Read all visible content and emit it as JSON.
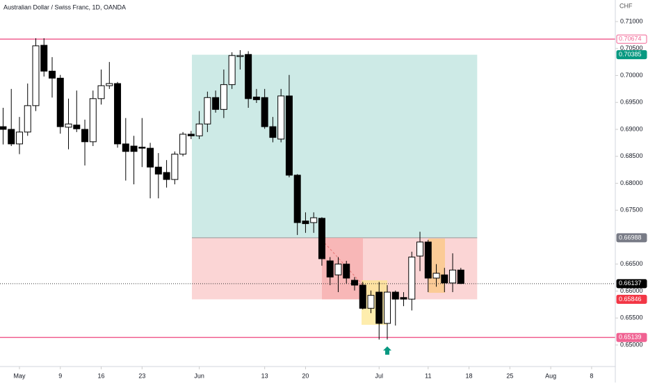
{
  "chart_data": {
    "type": "candlestick",
    "title": "Australian Dollar / Swiss Franc, 1D, OANDA",
    "y_axis_label": "CHF",
    "x": [
      0,
      1,
      2,
      3,
      4,
      5,
      6,
      7,
      8,
      9,
      10,
      11,
      12,
      13,
      14,
      15,
      16,
      17,
      18,
      19,
      20,
      21,
      22,
      23,
      24,
      25,
      26,
      27,
      28,
      29,
      30,
      31,
      32,
      33,
      34,
      35,
      36,
      37,
      38,
      39,
      40,
      41,
      42,
      43,
      44,
      45,
      46,
      47,
      48,
      49,
      50,
      51,
      52,
      53,
      54,
      55,
      56
    ],
    "open": [
      0.6905,
      0.69,
      0.6873,
      0.6895,
      0.6944,
      0.7056,
      0.7008,
      0.6995,
      0.6904,
      0.6908,
      0.69,
      0.6877,
      0.6957,
      0.6981,
      0.6985,
      0.6873,
      0.6869,
      0.6867,
      0.6865,
      0.683,
      0.682,
      0.6807,
      0.6854,
      0.6891,
      0.6888,
      0.691,
      0.6959,
      0.6937,
      0.6983,
      0.7035,
      0.7039,
      0.696,
      0.6959,
      0.6905,
      0.6882,
      0.6962,
      0.6815,
      0.673,
      0.6727,
      0.6735,
      0.6656,
      0.663,
      0.665,
      0.662,
      0.6611,
      0.6568,
      0.6598,
      0.654,
      0.6598,
      0.6588,
      0.6585,
      0.6665,
      0.6691,
      0.6624,
      0.663,
      0.6615,
      0.6639
    ],
    "high": [
      0.694,
      0.6975,
      0.6923,
      0.6985,
      0.7069,
      0.7069,
      0.7034,
      0.7001,
      0.6957,
      0.6972,
      0.6918,
      0.6972,
      0.7011,
      0.7025,
      0.6988,
      0.6921,
      0.6888,
      0.6921,
      0.6875,
      0.6856,
      0.6843,
      0.6859,
      0.6895,
      0.6897,
      0.6934,
      0.697,
      0.6972,
      0.7011,
      0.7043,
      0.7047,
      0.7045,
      0.6975,
      0.6975,
      0.6923,
      0.6975,
      0.7001,
      0.6817,
      0.6746,
      0.6746,
      0.6737,
      0.6663,
      0.6663,
      0.6656,
      0.6626,
      0.6617,
      0.6601,
      0.6617,
      0.6611,
      0.6601,
      0.6598,
      0.6673,
      0.671,
      0.6695,
      0.665,
      0.6643,
      0.667,
      0.6643
    ],
    "low": [
      0.6872,
      0.6869,
      0.6854,
      0.6888,
      0.6934,
      0.6998,
      0.6959,
      0.6892,
      0.6863,
      0.6895,
      0.6833,
      0.6869,
      0.6946,
      0.6975,
      0.6866,
      0.6805,
      0.6798,
      0.683,
      0.6772,
      0.6772,
      0.6792,
      0.6798,
      0.685,
      0.6882,
      0.6882,
      0.6895,
      0.6931,
      0.6921,
      0.6975,
      0.7011,
      0.694,
      0.6949,
      0.6901,
      0.6876,
      0.6876,
      0.6811,
      0.6704,
      0.6708,
      0.6708,
      0.6647,
      0.6611,
      0.6598,
      0.6614,
      0.6601,
      0.6566,
      0.6559,
      0.651,
      0.651,
      0.6536,
      0.6572,
      0.6564,
      0.6637,
      0.6598,
      0.6608,
      0.6598,
      0.6598,
      0.6613
    ],
    "close": [
      0.69,
      0.6873,
      0.6895,
      0.6944,
      0.7055,
      0.7008,
      0.6995,
      0.6905,
      0.691,
      0.6901,
      0.6877,
      0.6957,
      0.6981,
      0.6985,
      0.6873,
      0.6859,
      0.6859,
      0.6865,
      0.683,
      0.6817,
      0.6807,
      0.6854,
      0.6891,
      0.6888,
      0.691,
      0.6959,
      0.6937,
      0.6983,
      0.7037,
      0.7037,
      0.6957,
      0.6955,
      0.6905,
      0.6885,
      0.6962,
      0.6815,
      0.6727,
      0.6725,
      0.6736,
      0.666,
      0.6626,
      0.665,
      0.6624,
      0.6611,
      0.6568,
      0.6592,
      0.654,
      0.6598,
      0.6585,
      0.6585,
      0.6663,
      0.6691,
      0.6624,
      0.6633,
      0.6615,
      0.6639,
      0.6614
    ],
    "up_color": "#ffffff",
    "down_color": "#000000",
    "xlim": [
      -0.38,
      74.9
    ],
    "ylim": [
      0.6469,
      0.714
    ],
    "xticks": [
      {
        "value": 2,
        "label": "May"
      },
      {
        "value": 7,
        "label": "9"
      },
      {
        "value": 12,
        "label": "16"
      },
      {
        "value": 17,
        "label": "23"
      },
      {
        "value": 24,
        "label": "Jun"
      },
      {
        "value": 32,
        "label": "13"
      },
      {
        "value": 37,
        "label": "20"
      },
      {
        "value": 46,
        "label": "Jul"
      },
      {
        "value": 52,
        "label": "11"
      },
      {
        "value": 57,
        "label": "18"
      },
      {
        "value": 62,
        "label": "25"
      },
      {
        "value": 67,
        "label": "Aug"
      },
      {
        "value": 72,
        "label": "8"
      }
    ],
    "yticks": [
      {
        "value": 0.71,
        "label": "0.71000"
      },
      {
        "value": 0.705,
        "label": "0.70500"
      },
      {
        "value": 0.7,
        "label": "0.70000"
      },
      {
        "value": 0.695,
        "label": "0.69500"
      },
      {
        "value": 0.69,
        "label": "0.69000"
      },
      {
        "value": 0.685,
        "label": "0.68500"
      },
      {
        "value": 0.68,
        "label": "0.68000"
      },
      {
        "value": 0.675,
        "label": "0.67500"
      },
      {
        "value": 0.665,
        "label": "0.66500"
      },
      {
        "value": 0.66,
        "label": "0.66000"
      },
      {
        "value": 0.655,
        "label": "0.65500"
      },
      {
        "value": 0.65,
        "label": "0.65000"
      }
    ],
    "horizontal_lines": [
      0.70674,
      0.65139
    ],
    "line_color": "#f06292",
    "target": 0.70385,
    "target_color": "#089981",
    "entry": 0.66988,
    "entry_color": "#787b86",
    "stop": 0.65846,
    "stop_color": "#f23645",
    "last_price": 0.66137,
    "last_color": "#000000"
  }
}
